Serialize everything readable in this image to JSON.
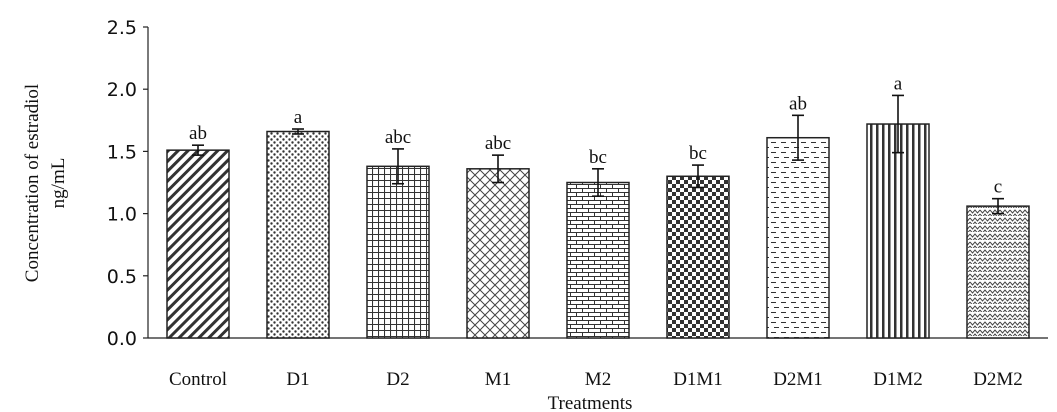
{
  "chart_data": {
    "type": "bar",
    "title": "",
    "xlabel": "Treatments",
    "ylabel_lines": [
      "Concentration of estradiol",
      "ng/mL"
    ],
    "ylim": [
      0,
      2.5
    ],
    "yticks": [
      "0.0",
      "0.5",
      "1.0",
      "1.5",
      "2.0",
      "2.5"
    ],
    "ytick_values": [
      0,
      0.5,
      1.0,
      1.5,
      2.0,
      2.5
    ],
    "grid": false,
    "legend": "none",
    "categories": [
      "Control",
      "D1",
      "D2",
      "M1",
      "M2",
      "D1M1",
      "D2M1",
      "D1M2",
      "D2M2"
    ],
    "values": [
      1.51,
      1.66,
      1.38,
      1.36,
      1.25,
      1.3,
      1.61,
      1.72,
      1.06
    ],
    "errors": [
      0.04,
      0.02,
      0.14,
      0.11,
      0.11,
      0.09,
      0.18,
      0.23,
      0.06
    ],
    "significance": [
      "ab",
      "a",
      "abc",
      "abc",
      "bc",
      "bc",
      "ab",
      "a",
      "c"
    ],
    "patterns": [
      "diagonal",
      "dots",
      "grid",
      "crosshatch",
      "bricks",
      "checker",
      "dashes",
      "vertical",
      "zigzag"
    ]
  }
}
